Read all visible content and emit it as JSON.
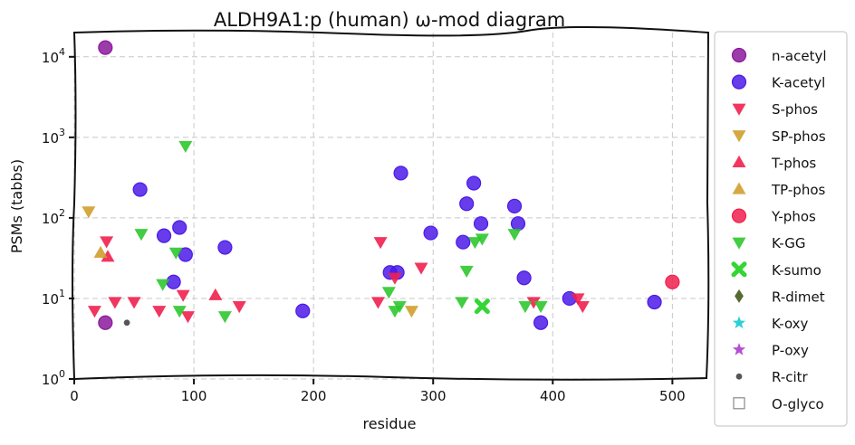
{
  "chart_data": {
    "type": "scatter",
    "title": "ALDH9A1:p (human) ω-mod diagram",
    "xlabel": "residue",
    "ylabel": "PSMs (tabbs)",
    "xlim": [
      0,
      530
    ],
    "ylim": [
      1,
      20000
    ],
    "yscale": "log",
    "grid": true,
    "legend_placement": "outside-right",
    "xticks": [
      "0",
      "100",
      "200",
      "300",
      "400",
      "500"
    ],
    "yticks": [
      "10^0",
      "10^1",
      "10^2",
      "10^3",
      "10^4"
    ],
    "series": [
      {
        "name": "n-acetyl",
        "marker": "circle",
        "color": "#8B1A9C",
        "points": [
          [
            26,
            13000
          ],
          [
            26,
            5
          ]
        ]
      },
      {
        "name": "K-acetyl",
        "marker": "circle",
        "color": "#4B1AE8",
        "points": [
          [
            55,
            225
          ],
          [
            75,
            60
          ],
          [
            83,
            16
          ],
          [
            88,
            76
          ],
          [
            93,
            35
          ],
          [
            126,
            43
          ],
          [
            191,
            7
          ],
          [
            264,
            21
          ],
          [
            270,
            21
          ],
          [
            273,
            360
          ],
          [
            298,
            65
          ],
          [
            325,
            50
          ],
          [
            328,
            150
          ],
          [
            334,
            270
          ],
          [
            340,
            85
          ],
          [
            368,
            140
          ],
          [
            371,
            85
          ],
          [
            376,
            18
          ],
          [
            390,
            5
          ],
          [
            414,
            10
          ],
          [
            485,
            9
          ]
        ]
      },
      {
        "name": "S-phos",
        "marker": "triangle-down",
        "color": "#F0204E",
        "points": [
          [
            17,
            7
          ],
          [
            27,
            51
          ],
          [
            34,
            9
          ],
          [
            50,
            9
          ],
          [
            71,
            7
          ],
          [
            91,
            11
          ],
          [
            95,
            6
          ],
          [
            138,
            8
          ],
          [
            254,
            9
          ],
          [
            256,
            50
          ],
          [
            268,
            18
          ],
          [
            290,
            24
          ],
          [
            384,
            9
          ],
          [
            421,
            10
          ],
          [
            425,
            8
          ]
        ]
      },
      {
        "name": "SP-phos",
        "marker": "triangle-down",
        "color": "#D09F2E",
        "points": [
          [
            12,
            120
          ],
          [
            282,
            7
          ]
        ]
      },
      {
        "name": "T-phos",
        "marker": "triangle-up",
        "color": "#F0204E",
        "points": [
          [
            28,
            33
          ],
          [
            118,
            11
          ]
        ]
      },
      {
        "name": "TP-phos",
        "marker": "triangle-up",
        "color": "#D09F2E",
        "points": [
          [
            22,
            37
          ]
        ]
      },
      {
        "name": "Y-phos",
        "marker": "circle",
        "color": "#F0204E",
        "points": [
          [
            500,
            16
          ]
        ]
      },
      {
        "name": "K-GG",
        "marker": "triangle-down",
        "color": "#2EC82E",
        "points": [
          [
            56,
            63
          ],
          [
            74,
            15
          ],
          [
            85,
            37
          ],
          [
            88,
            7
          ],
          [
            93,
            780
          ],
          [
            126,
            6
          ],
          [
            263,
            12
          ],
          [
            268,
            7
          ],
          [
            272,
            8
          ],
          [
            324,
            9
          ],
          [
            328,
            22
          ],
          [
            335,
            50
          ],
          [
            341,
            55
          ],
          [
            368,
            63
          ],
          [
            377,
            8
          ],
          [
            390,
            8
          ]
        ]
      },
      {
        "name": "K-sumo",
        "marker": "x",
        "color": "#33D633",
        "points": [
          [
            341,
            8
          ]
        ]
      },
      {
        "name": "R-dimet",
        "marker": "diamond",
        "color": "#556B2F",
        "points": []
      },
      {
        "name": "K-oxy",
        "marker": "star",
        "color": "#2ECFD6",
        "points": []
      },
      {
        "name": "P-oxy",
        "marker": "star",
        "color": "#B74FD6",
        "points": []
      },
      {
        "name": "R-citr",
        "marker": "dot",
        "color": "#555555",
        "points": [
          [
            44,
            5
          ]
        ]
      },
      {
        "name": "O-glyco",
        "marker": "square-open",
        "color": "#888888",
        "points": []
      }
    ]
  }
}
